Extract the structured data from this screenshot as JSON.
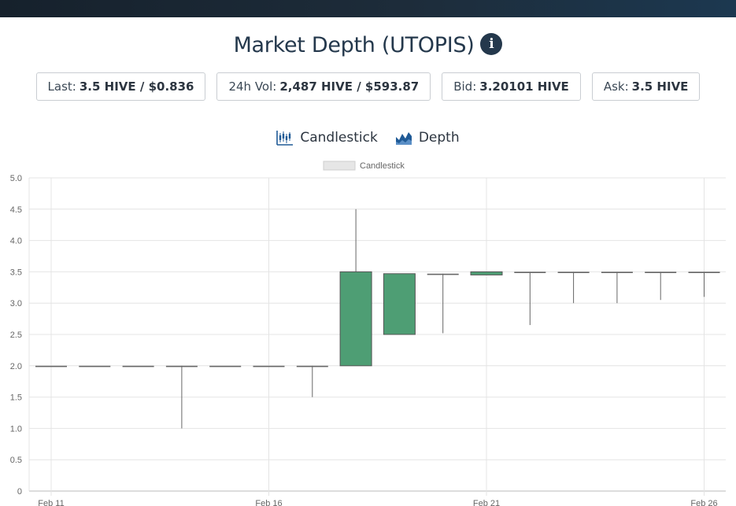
{
  "header": {
    "title": "Market Depth (UTOPIS)",
    "info_icon": "info-circle-icon"
  },
  "stats": [
    {
      "label": "Last:",
      "value": "3.5 HIVE / $0.836"
    },
    {
      "label": "24h Vol:",
      "value": "2,487 HIVE / $593.87"
    },
    {
      "label": "Bid:",
      "value": "3.20101 HIVE"
    },
    {
      "label": "Ask:",
      "value": "3.5 HIVE"
    }
  ],
  "tabs": [
    {
      "label": "Candlestick",
      "icon": "candlestick-icon"
    },
    {
      "label": "Depth",
      "icon": "depth-chart-icon"
    }
  ],
  "colors": {
    "up": "#4e9e74",
    "down": "#8a5a5a",
    "header_dark": "#24384c",
    "tab_icon": "#1f5a96"
  },
  "chart_data": {
    "type": "candlestick",
    "legend": [
      "Candlestick"
    ],
    "legend_position": "top-center",
    "ylim": [
      0,
      5
    ],
    "yticks": [
      "0",
      "0.5",
      "1.0",
      "1.5",
      "2.0",
      "2.5",
      "3.0",
      "3.5",
      "4.0",
      "4.5",
      "5.0"
    ],
    "xticks": [
      "Feb 11",
      "Feb 16",
      "Feb 21",
      "Feb 26"
    ],
    "grid": true,
    "candles": [
      {
        "date": "Feb 11",
        "open": 2.0,
        "high": 2.0,
        "low": 2.0,
        "close": 2.0
      },
      {
        "date": "Feb 12",
        "open": 2.0,
        "high": 2.0,
        "low": 2.0,
        "close": 2.0
      },
      {
        "date": "Feb 13",
        "open": 2.0,
        "high": 2.0,
        "low": 2.0,
        "close": 2.0
      },
      {
        "date": "Feb 14",
        "open": 2.0,
        "high": 2.0,
        "low": 1.0,
        "close": 2.0
      },
      {
        "date": "Feb 15",
        "open": 2.0,
        "high": 2.0,
        "low": 2.0,
        "close": 2.0
      },
      {
        "date": "Feb 16",
        "open": 2.0,
        "high": 2.0,
        "low": 2.0,
        "close": 2.0
      },
      {
        "date": "Feb 17",
        "open": 2.0,
        "high": 2.0,
        "low": 1.5,
        "close": 2.0
      },
      {
        "date": "Feb 18",
        "open": 2.0,
        "high": 4.5,
        "low": 2.0,
        "close": 3.5
      },
      {
        "date": "Feb 19",
        "open": 2.5,
        "high": 3.47,
        "low": 2.5,
        "close": 3.47
      },
      {
        "date": "Feb 20",
        "open": 3.47,
        "high": 3.47,
        "low": 2.52,
        "close": 3.45
      },
      {
        "date": "Feb 21",
        "open": 3.45,
        "high": 3.5,
        "low": 3.45,
        "close": 3.5
      },
      {
        "date": "Feb 22",
        "open": 3.5,
        "high": 3.5,
        "low": 2.65,
        "close": 3.49
      },
      {
        "date": "Feb 23",
        "open": 3.5,
        "high": 3.5,
        "low": 3.0,
        "close": 3.5
      },
      {
        "date": "Feb 24",
        "open": 3.5,
        "high": 3.5,
        "low": 3.0,
        "close": 3.5
      },
      {
        "date": "Feb 25",
        "open": 3.5,
        "high": 3.5,
        "low": 3.05,
        "close": 3.5
      },
      {
        "date": "Feb 26",
        "open": 3.5,
        "high": 3.5,
        "low": 3.1,
        "close": 3.5
      }
    ]
  }
}
